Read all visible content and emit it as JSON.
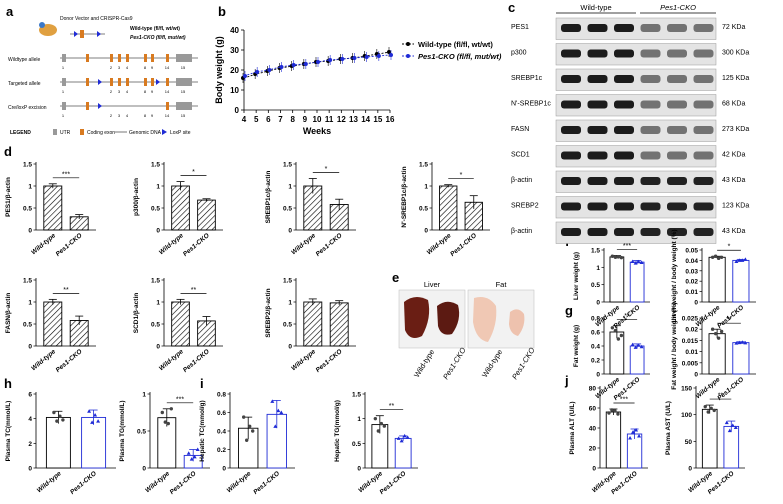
{
  "panel_labels": [
    "a",
    "b",
    "c",
    "d",
    "e",
    "f",
    "g",
    "h",
    "i",
    "j"
  ],
  "panel_a": {
    "donor_title": "Donor Vector and CRISPR-Cas9",
    "wt_label": "Wild-type (fl/fl, wt/wt)",
    "cko_label": "Pes1-CKO (fl/fl, mut/wt)",
    "rows": [
      "Wildtype allele",
      "Targeted allele",
      "Cre/loxP excision"
    ],
    "legend_title": "LEGEND",
    "legend_items": [
      "UTR",
      "Coding exon",
      "Genomic DNA",
      "LoxP site"
    ],
    "exon_numbers": [
      "1",
      "2",
      "3",
      "4",
      "8",
      "9",
      "14",
      "15"
    ]
  },
  "panel_b": {
    "legend": [
      "Wild-type (fl/fl, wt/wt)",
      "Pes1-CKO (fl/fl, mut/wt)"
    ],
    "ylabel": "Body weight (g)",
    "xlabel": "Weeks"
  },
  "panel_c": {
    "col_headers": [
      "Wild-type",
      "Pes1-CKO"
    ],
    "rows": [
      {
        "name": "PES1",
        "kda": "72 KDa"
      },
      {
        "name": "p300",
        "kda": "300 KDa"
      },
      {
        "name": "SREBP1c",
        "kda": "125 KDa"
      },
      {
        "name": "N'-SREBP1c",
        "kda": "68 KDa"
      },
      {
        "name": "FASN",
        "kda": "273 KDa"
      },
      {
        "name": "SCD1",
        "kda": "42 KDa"
      },
      {
        "name": "β-actin",
        "kda": "43 KDa"
      },
      {
        "name": "SREBP2",
        "kda": "123 KDa"
      },
      {
        "name": "β-actin",
        "kda": "43 KDa"
      }
    ]
  },
  "panel_e": {
    "labels": [
      "Liver",
      "Fat"
    ],
    "groups": [
      "Wild-type",
      "Pes1-CKO",
      "Wild-type",
      "Pes1-CKO"
    ]
  },
  "colors": {
    "wild_type": "#000000",
    "cko": "#1f2bd6",
    "liver": "#6a1e14",
    "fat": "#f0c8b4"
  },
  "chart_data": [
    {
      "id": "b",
      "type": "line",
      "title": "",
      "xlabel": "Weeks",
      "ylabel": "Body weight (g)",
      "x": [
        4,
        5,
        6,
        7,
        8,
        9,
        10,
        11,
        12,
        13,
        14,
        15,
        16
      ],
      "ylim": [
        0,
        40
      ],
      "yticks": [
        0,
        10,
        20,
        30,
        40
      ],
      "series": [
        {
          "name": "Wild-type (fl/fl, wt/wt)",
          "values": [
            16,
            18,
            19.5,
            21,
            22,
            23,
            24,
            24.5,
            25.5,
            26,
            27,
            28,
            29
          ]
        },
        {
          "name": "Pes1-CKO (fl/fl, mut/wt)",
          "values": [
            17,
            19,
            20,
            21.5,
            22.5,
            23,
            24,
            25,
            25.5,
            26,
            26.5,
            27,
            27.5
          ]
        }
      ]
    },
    {
      "id": "d1",
      "type": "bar",
      "ylabel": "PES1/β-actin",
      "categories": [
        "Wild-type",
        "Pes1-CKO"
      ],
      "values": [
        1.0,
        0.3
      ],
      "errors": [
        0.05,
        0.05
      ],
      "ylim": [
        0,
        1.5
      ],
      "yticks": [
        0.0,
        0.5,
        1.0,
        1.5
      ],
      "sig": "***",
      "hatch": true
    },
    {
      "id": "d2",
      "type": "bar",
      "ylabel": "p300/β-actin",
      "categories": [
        "Wild-type",
        "Pes1-CKO"
      ],
      "values": [
        1.0,
        0.68
      ],
      "errors": [
        0.1,
        0.03
      ],
      "ylim": [
        0,
        1.5
      ],
      "yticks": [
        0.0,
        0.5,
        1.0,
        1.5
      ],
      "sig": "*",
      "hatch": true
    },
    {
      "id": "d3",
      "type": "bar",
      "ylabel": "SREBP1c/β-actin",
      "categories": [
        "Wild-type",
        "Pes1-CKO"
      ],
      "values": [
        1.0,
        0.58
      ],
      "errors": [
        0.17,
        0.12
      ],
      "ylim": [
        0,
        1.5
      ],
      "yticks": [
        0.0,
        0.5,
        1.0,
        1.5
      ],
      "sig": "*",
      "hatch": true
    },
    {
      "id": "d4",
      "type": "bar",
      "ylabel": "N'-SREBP1c/β-actin",
      "categories": [
        "Wild-type",
        "Pes1-CKO"
      ],
      "values": [
        1.0,
        0.63
      ],
      "errors": [
        0.03,
        0.15
      ],
      "ylim": [
        0,
        1.5
      ],
      "yticks": [
        0.0,
        0.5,
        1.0,
        1.5
      ],
      "sig": "*",
      "hatch": true
    },
    {
      "id": "d5",
      "type": "bar",
      "ylabel": "FASN/β-actin",
      "categories": [
        "Wild-type",
        "Pes1-CKO"
      ],
      "values": [
        1.0,
        0.58
      ],
      "errors": [
        0.06,
        0.1
      ],
      "ylim": [
        0,
        1.5
      ],
      "yticks": [
        0.0,
        0.5,
        1.0,
        1.5
      ],
      "sig": "**",
      "hatch": true
    },
    {
      "id": "d6",
      "type": "bar",
      "ylabel": "SCD1/β-actin",
      "categories": [
        "Wild-type",
        "Pes1-CKO"
      ],
      "values": [
        1.0,
        0.57
      ],
      "errors": [
        0.06,
        0.1
      ],
      "ylim": [
        0,
        1.5
      ],
      "yticks": [
        0.0,
        0.5,
        1.0,
        1.5
      ],
      "sig": "**",
      "hatch": true
    },
    {
      "id": "d7",
      "type": "bar",
      "ylabel": "SREBP2/β-actin",
      "categories": [
        "Wild-type",
        "Pes1-CKO"
      ],
      "values": [
        1.0,
        0.98
      ],
      "errors": [
        0.07,
        0.05
      ],
      "ylim": [
        0,
        1.5
      ],
      "yticks": [
        0.0,
        0.5,
        1.0,
        1.5
      ],
      "sig": "",
      "hatch": true
    },
    {
      "id": "f1",
      "type": "bar",
      "ylabel": "Liver weight (g)",
      "categories": [
        "Wild-type",
        "Pes1-CKO"
      ],
      "values": [
        1.3,
        1.15
      ],
      "errors": [
        0.04,
        0.05
      ],
      "ylim": [
        0,
        1.5
      ],
      "yticks": [
        0.0,
        0.5,
        1.0,
        1.5
      ],
      "sig": "***",
      "points": [
        [
          1.32,
          1.29,
          1.3,
          1.28
        ],
        [
          1.17,
          1.12,
          1.16,
          1.14
        ]
      ]
    },
    {
      "id": "f2",
      "type": "bar",
      "ylabel": "Liver weight / body weight (%)",
      "categories": [
        "Wild-type",
        "Pes1-CKO"
      ],
      "values": [
        0.043,
        0.04
      ],
      "errors": [
        0.001,
        0.001
      ],
      "ylim": [
        0,
        0.05
      ],
      "yticks": [
        0.0,
        0.01,
        0.02,
        0.03,
        0.04,
        0.05
      ],
      "sig": "*",
      "points": [
        [
          0.043,
          0.044,
          0.042,
          0.043
        ],
        [
          0.039,
          0.04,
          0.04,
          0.041
        ]
      ]
    },
    {
      "id": "g1",
      "type": "bar",
      "ylabel": "Fat weight (g)",
      "categories": [
        "Wild-type",
        "Pes1-CKO"
      ],
      "values": [
        0.6,
        0.4
      ],
      "errors": [
        0.09,
        0.03
      ],
      "ylim": [
        0,
        0.8
      ],
      "yticks": [
        0.0,
        0.2,
        0.4,
        0.6,
        0.8
      ],
      "sig": "**",
      "points": [
        [
          0.66,
          0.62,
          0.5,
          0.55
        ],
        [
          0.42,
          0.38,
          0.41,
          0.39
        ]
      ]
    },
    {
      "id": "g2",
      "type": "bar",
      "ylabel": "Fat weight / body weight (%)",
      "categories": [
        "Wild-type",
        "Pes1-CKO"
      ],
      "values": [
        0.018,
        0.014
      ],
      "errors": [
        0.002,
        0.0004
      ],
      "ylim": [
        0,
        0.025
      ],
      "yticks": [
        0.0,
        0.005,
        0.01,
        0.015,
        0.02,
        0.025
      ],
      "sig": "**",
      "points": [
        [
          0.02,
          0.018,
          0.016,
          0.019
        ],
        [
          0.0138,
          0.014,
          0.0142,
          0.0139
        ]
      ]
    },
    {
      "id": "h1",
      "type": "bar",
      "ylabel": "Plasma TC(mmol/L)",
      "categories": [
        "Wild-type",
        "Pes1-CKO"
      ],
      "values": [
        4.1,
        4.1
      ],
      "errors": [
        0.5,
        0.6
      ],
      "ylim": [
        0,
        6
      ],
      "yticks": [
        0,
        2,
        4,
        6
      ],
      "sig": "",
      "points": [
        [
          4.5,
          3.8,
          4.2,
          3.9
        ],
        [
          4.6,
          3.7,
          4.3,
          3.8
        ]
      ]
    },
    {
      "id": "h2",
      "type": "bar",
      "ylabel": "Plasma TG(mmol/L)",
      "categories": [
        "Wild-type",
        "Pes1-CKO"
      ],
      "values": [
        0.68,
        0.17
      ],
      "errors": [
        0.12,
        0.08
      ],
      "ylim": [
        0,
        1.0
      ],
      "yticks": [
        0.0,
        0.5,
        1.0
      ],
      "sig": "***",
      "points": [
        [
          0.75,
          0.62,
          0.6,
          0.8
        ],
        [
          0.2,
          0.12,
          0.15,
          0.25
        ]
      ]
    },
    {
      "id": "i1",
      "type": "bar",
      "ylabel": "Hepatic TC(mmol/g)",
      "categories": [
        "Wild-type",
        "Pes1-CKO"
      ],
      "values": [
        0.43,
        0.58
      ],
      "errors": [
        0.12,
        0.15
      ],
      "ylim": [
        0,
        0.8
      ],
      "yticks": [
        0.0,
        0.2,
        0.4,
        0.6,
        0.8
      ],
      "sig": "",
      "points": [
        [
          0.55,
          0.3,
          0.45,
          0.4
        ],
        [
          0.72,
          0.45,
          0.62,
          0.6
        ]
      ]
    },
    {
      "id": "i2",
      "type": "bar",
      "ylabel": "Hepatic TG(mmol/g)",
      "categories": [
        "Wild-type",
        "Pes1-CKO"
      ],
      "values": [
        0.88,
        0.6
      ],
      "errors": [
        0.18,
        0.05
      ],
      "ylim": [
        0,
        1.5
      ],
      "yticks": [
        0.0,
        0.5,
        1.0,
        1.5
      ],
      "sig": "**",
      "points": [
        [
          1.0,
          0.75,
          0.9,
          0.85
        ],
        [
          0.6,
          0.55,
          0.65,
          0.62
        ]
      ]
    },
    {
      "id": "j1",
      "type": "bar",
      "ylabel": "Plasma ALT (U/L)",
      "categories": [
        "Wild-type",
        "Pes1-CKO"
      ],
      "values": [
        56,
        34
      ],
      "errors": [
        3,
        5
      ],
      "ylim": [
        0,
        80
      ],
      "yticks": [
        0,
        20,
        40,
        60,
        80
      ],
      "sig": "***",
      "points": [
        [
          55,
          58,
          57,
          54
        ],
        [
          30,
          36,
          38,
          32
        ]
      ]
    },
    {
      "id": "j2",
      "type": "bar",
      "ylabel": "Plasma AST (U/L)",
      "categories": [
        "Wild-type",
        "Pes1-CKO"
      ],
      "values": [
        110,
        78
      ],
      "errors": [
        8,
        10
      ],
      "ylim": [
        0,
        150
      ],
      "yticks": [
        0,
        50,
        100,
        150
      ],
      "sig": "**",
      "points": [
        [
          115,
          105,
          112,
          108
        ],
        [
          85,
          70,
          80,
          76
        ]
      ]
    }
  ]
}
